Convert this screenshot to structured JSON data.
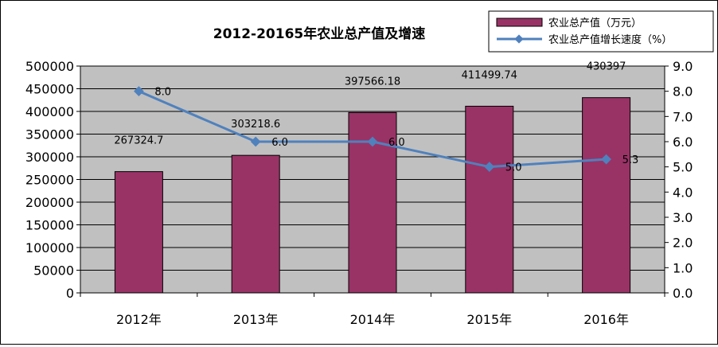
{
  "chart_data": {
    "type": "bar",
    "title": "2012-20165年农业总产值及增速",
    "categories": [
      "2012年",
      "2013年",
      "2014年",
      "2015年",
      "2016年"
    ],
    "series": [
      {
        "name": "农业总产值（万元）",
        "type": "bar",
        "axis": "left",
        "values": [
          267324.7,
          303218.6,
          397566.18,
          411499.74,
          430397
        ],
        "labels": [
          "267324.7",
          "303218.6",
          "397566.18",
          "411499.74",
          "430397"
        ],
        "color": "#993366"
      },
      {
        "name": "农业总产值增长速度（%）",
        "type": "line",
        "axis": "right",
        "values": [
          8.0,
          6.0,
          6.0,
          5.0,
          5.3
        ],
        "labels": [
          "8.0",
          "6.0",
          "6.0",
          "5.0",
          "5.3"
        ],
        "color": "#4F81BD"
      }
    ],
    "y_left": {
      "range": [
        0,
        500000
      ],
      "ticks": [
        0,
        50000,
        100000,
        150000,
        200000,
        250000,
        300000,
        350000,
        400000,
        450000,
        500000
      ],
      "tick_labels": [
        "0",
        "50000",
        "100000",
        "150000",
        "200000",
        "250000",
        "300000",
        "350000",
        "400000",
        "450000",
        "500000"
      ]
    },
    "y_right": {
      "range": [
        0,
        9
      ],
      "ticks": [
        0,
        1,
        2,
        3,
        4,
        5,
        6,
        7,
        8,
        9
      ],
      "tick_labels": [
        "0.0",
        "1.0",
        "2.0",
        "3.0",
        "4.0",
        "5.0",
        "6.0",
        "7.0",
        "8.0",
        "9.0"
      ]
    },
    "grid": true,
    "legend_position": "top-right",
    "plot_background": "#C0C0C0"
  }
}
